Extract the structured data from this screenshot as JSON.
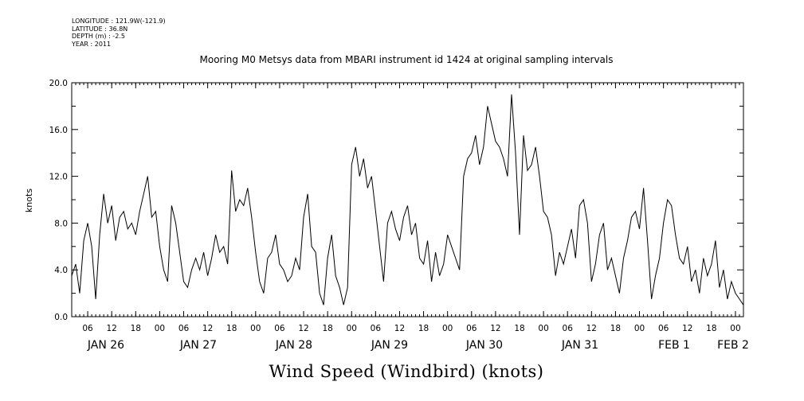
{
  "header": {
    "longitude": "LONGITUDE : 121.9W(-121.9)",
    "latitude": "LATITUDE : 36.8N",
    "depth": "DEPTH (m) : -2.5",
    "year": "YEAR : 2011"
  },
  "chart_data": {
    "type": "line",
    "title": "Mooring M0 Metsys data from MBARI instrument id 1424 at original sampling intervals",
    "xlabel": "Wind Speed (Windbird) (knots)",
    "ylabel": "knots",
    "ylim": [
      0,
      20
    ],
    "y_ticks": [
      "0.0",
      "4.0",
      "8.0",
      "12.0",
      "16.0",
      "20.0"
    ],
    "x_range_hours": [
      "2011-01-26 02:00",
      "2011-02-02 02:00"
    ],
    "x_hour_ticks": [
      "06",
      "12",
      "18",
      "00",
      "06",
      "12",
      "18",
      "00",
      "06",
      "12",
      "18",
      "00",
      "06",
      "12",
      "18",
      "00",
      "06",
      "12",
      "18",
      "00",
      "06",
      "12",
      "18",
      "00",
      "06",
      "12",
      "18",
      "00"
    ],
    "x_day_labels": [
      "JAN 26",
      "JAN 27",
      "JAN 28",
      "JAN 29",
      "JAN 30",
      "JAN 31",
      "FEB  1",
      "FEB  2"
    ],
    "grid": false,
    "series": [
      {
        "values_time_hours": [
          "2011-01-26 02:00",
          "2011-01-26 03:00",
          "2011-01-26 04:00",
          "2011-01-26 05:00",
          "2011-01-26 06:00",
          "2011-01-26 07:00",
          "2011-01-26 08:00",
          "2011-01-26 09:00",
          "2011-01-26 10:00",
          "2011-01-26 11:00",
          "2011-01-26 12:00",
          "2011-01-26 13:00",
          "2011-01-26 14:00",
          "2011-01-26 15:00",
          "2011-01-26 16:00",
          "2011-01-26 17:00",
          "2011-01-26 18:00",
          "2011-01-26 19:00",
          "2011-01-26 20:00",
          "2011-01-26 21:00",
          "2011-01-26 22:00",
          "2011-01-26 23:00",
          "2011-01-27 00:00",
          "2011-01-27 01:00",
          "2011-01-27 02:00",
          "2011-01-27 03:00",
          "2011-01-27 04:00",
          "2011-01-27 05:00",
          "2011-01-27 06:00",
          "2011-01-27 07:00",
          "2011-01-27 08:00",
          "2011-01-27 09:00",
          "2011-01-27 10:00",
          "2011-01-27 11:00",
          "2011-01-27 12:00",
          "2011-01-27 13:00",
          "2011-01-27 14:00",
          "2011-01-27 15:00",
          "2011-01-27 16:00",
          "2011-01-27 17:00",
          "2011-01-27 18:00",
          "2011-01-27 19:00",
          "2011-01-27 20:00",
          "2011-01-27 21:00",
          "2011-01-27 22:00",
          "2011-01-27 23:00",
          "2011-01-28 00:00",
          "2011-01-28 01:00",
          "2011-01-28 02:00",
          "2011-01-28 03:00",
          "2011-01-28 04:00",
          "2011-01-28 05:00",
          "2011-01-28 06:00",
          "2011-01-28 07:00",
          "2011-01-28 08:00",
          "2011-01-28 09:00",
          "2011-01-28 10:00",
          "2011-01-28 11:00",
          "2011-01-28 12:00",
          "2011-01-28 13:00",
          "2011-01-28 14:00",
          "2011-01-28 15:00",
          "2011-01-28 16:00",
          "2011-01-28 17:00",
          "2011-01-28 18:00",
          "2011-01-28 19:00",
          "2011-01-28 20:00",
          "2011-01-28 21:00",
          "2011-01-28 22:00",
          "2011-01-28 23:00",
          "2011-01-29 00:00",
          "2011-01-29 01:00",
          "2011-01-29 02:00",
          "2011-01-29 03:00",
          "2011-01-29 04:00",
          "2011-01-29 05:00",
          "2011-01-29 06:00",
          "2011-01-29 07:00",
          "2011-01-29 08:00",
          "2011-01-29 09:00",
          "2011-01-29 10:00",
          "2011-01-29 11:00",
          "2011-01-29 12:00",
          "2011-01-29 13:00",
          "2011-01-29 14:00",
          "2011-01-29 15:00",
          "2011-01-29 16:00",
          "2011-01-29 17:00",
          "2011-01-29 18:00",
          "2011-01-29 19:00",
          "2011-01-29 20:00",
          "2011-01-29 21:00",
          "2011-01-29 22:00",
          "2011-01-29 23:00",
          "2011-01-30 00:00",
          "2011-01-30 01:00",
          "2011-01-30 02:00",
          "2011-01-30 03:00",
          "2011-01-30 04:00",
          "2011-01-30 05:00",
          "2011-01-30 06:00",
          "2011-01-30 07:00",
          "2011-01-30 08:00",
          "2011-01-30 09:00",
          "2011-01-30 10:00",
          "2011-01-30 11:00",
          "2011-01-30 12:00",
          "2011-01-30 13:00",
          "2011-01-30 14:00",
          "2011-01-30 15:00",
          "2011-01-30 16:00",
          "2011-01-30 17:00",
          "2011-01-30 18:00",
          "2011-01-30 19:00",
          "2011-01-30 20:00",
          "2011-01-30 21:00",
          "2011-01-30 22:00",
          "2011-01-30 23:00",
          "2011-01-31 00:00",
          "2011-01-31 01:00",
          "2011-01-31 02:00",
          "2011-01-31 03:00",
          "2011-01-31 04:00",
          "2011-01-31 05:00",
          "2011-01-31 06:00",
          "2011-01-31 07:00",
          "2011-01-31 08:00",
          "2011-01-31 09:00",
          "2011-01-31 10:00",
          "2011-01-31 11:00",
          "2011-01-31 12:00",
          "2011-01-31 13:00",
          "2011-01-31 14:00",
          "2011-01-31 15:00",
          "2011-01-31 16:00",
          "2011-01-31 17:00",
          "2011-01-31 18:00",
          "2011-01-31 19:00",
          "2011-01-31 20:00",
          "2011-01-31 21:00",
          "2011-01-31 22:00",
          "2011-01-31 23:00",
          "2011-02-01 00:00",
          "2011-02-01 01:00",
          "2011-02-01 02:00",
          "2011-02-01 03:00",
          "2011-02-01 04:00",
          "2011-02-01 05:00",
          "2011-02-01 06:00",
          "2011-02-01 07:00",
          "2011-02-01 08:00",
          "2011-02-01 09:00",
          "2011-02-01 10:00",
          "2011-02-01 11:00",
          "2011-02-01 12:00",
          "2011-02-01 13:00",
          "2011-02-01 14:00",
          "2011-02-01 15:00",
          "2011-02-01 16:00",
          "2011-02-01 17:00",
          "2011-02-01 18:00",
          "2011-02-01 19:00",
          "2011-02-01 20:00",
          "2011-02-01 21:00",
          "2011-02-01 22:00",
          "2011-02-01 23:00",
          "2011-02-02 00:00",
          "2011-02-02 01:00",
          "2011-02-02 02:00"
        ],
        "values": [
          3.5,
          4.5,
          2.0,
          6.5,
          8.0,
          6.0,
          1.5,
          7.0,
          10.5,
          8.0,
          9.5,
          6.5,
          8.5,
          9.0,
          7.5,
          8.0,
          7.0,
          9.0,
          10.5,
          12.0,
          8.5,
          9.0,
          6.0,
          4.0,
          3.0,
          9.5,
          8.0,
          5.5,
          3.0,
          2.5,
          4.0,
          5.0,
          4.0,
          5.5,
          3.5,
          5.0,
          7.0,
          5.5,
          6.0,
          4.5,
          12.5,
          9.0,
          10.0,
          9.5,
          11.0,
          8.5,
          5.5,
          3.0,
          2.0,
          5.0,
          5.5,
          7.0,
          4.5,
          4.0,
          3.0,
          3.5,
          5.0,
          4.0,
          8.5,
          10.5,
          6.0,
          5.5,
          2.0,
          1.0,
          5.0,
          7.0,
          3.5,
          2.5,
          1.0,
          2.5,
          13.0,
          14.5,
          12.0,
          13.5,
          11.0,
          12.0,
          9.0,
          6.0,
          3.0,
          8.0,
          9.0,
          7.5,
          6.5,
          8.5,
          9.5,
          7.0,
          8.0,
          5.0,
          4.5,
          6.5,
          3.0,
          5.5,
          3.5,
          4.5,
          7.0,
          6.0,
          5.0,
          4.0,
          12.0,
          13.5,
          14.0,
          15.5,
          13.0,
          14.5,
          18.0,
          16.5,
          15.0,
          14.5,
          13.5,
          12.0,
          19.0,
          14.0,
          7.0,
          15.5,
          12.5,
          13.0,
          14.5,
          12.0,
          9.0,
          8.5,
          7.0,
          3.5,
          5.5,
          4.5,
          6.0,
          7.5,
          5.0,
          9.5,
          10.0,
          8.0,
          3.0,
          4.5,
          7.0,
          8.0,
          4.0,
          5.0,
          3.5,
          2.0,
          5.0,
          6.5,
          8.5,
          9.0,
          7.5,
          11.0,
          6.5,
          1.5,
          3.5,
          5.0,
          8.0,
          10.0,
          9.5,
          7.0,
          5.0,
          4.5,
          6.0,
          3.0,
          4.0,
          2.0,
          5.0,
          3.5,
          4.5,
          6.5,
          2.5,
          4.0,
          1.5,
          3.0,
          2.0,
          1.5,
          1.0
        ]
      }
    ]
  }
}
